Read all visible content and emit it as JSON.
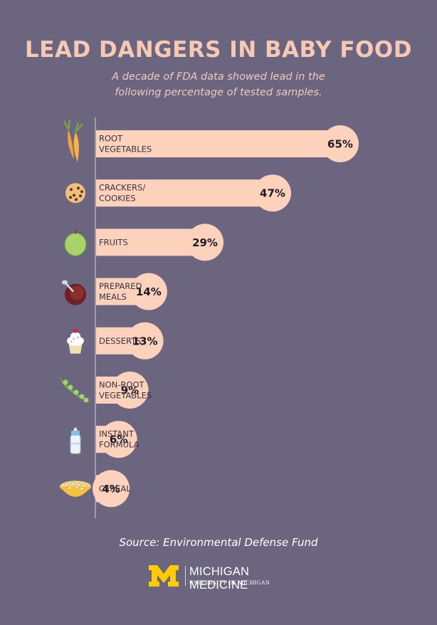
{
  "header": {
    "title": "LEAD DANGERS IN BABY FOOD",
    "subtitle_line1": "A decade of FDA data showed lead in the",
    "subtitle_line2": "following percentage of tested samples."
  },
  "chart_data": {
    "type": "bar",
    "orientation": "horizontal",
    "categories": [
      [
        "ROOT",
        "VEGETABLES"
      ],
      [
        "CRACKERS/",
        "COOKIES"
      ],
      [
        "FRUITS"
      ],
      [
        "PREPARED",
        "MEALS"
      ],
      [
        "DESSERTS"
      ],
      [
        "NON-ROOT",
        "VEGETABLES"
      ],
      [
        "INSTANT",
        "FORMULA"
      ],
      [
        "CEREAL"
      ]
    ],
    "values": [
      65,
      47,
      29,
      14,
      13,
      9,
      6,
      4
    ],
    "value_labels": [
      "65%",
      "47%",
      "29%",
      "14%",
      "13%",
      "9%",
      "6%",
      "4%"
    ],
    "icons": [
      "carrot-icon",
      "cookie-icon",
      "apple-icon",
      "soup-bowl-icon",
      "cupcake-icon",
      "pea-pod-icon",
      "baby-bottle-icon",
      "cereal-bowl-icon"
    ],
    "xlim": [
      0,
      65
    ],
    "grid": false,
    "legend": "none"
  },
  "colors": {
    "background": "#6b6580",
    "bar": "#fcd2bd",
    "title": "#f6c9b5",
    "axis": "#d8d4de",
    "logo_maize": "#ffcb05"
  },
  "footer": {
    "source": "Source: Environmental Defense Fund",
    "logo_name": "MICHIGAN MEDICINE",
    "logo_sub": "UNIVERSITY OF MICHIGAN"
  }
}
